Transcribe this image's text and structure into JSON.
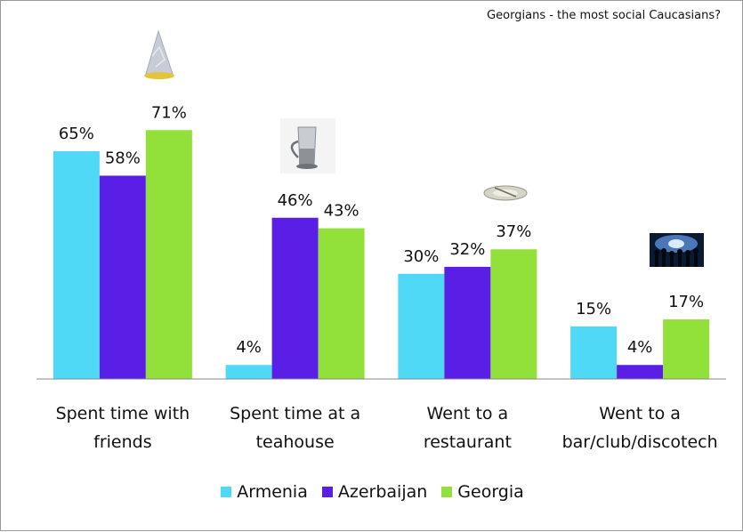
{
  "chart_data": {
    "type": "bar",
    "title": "Georgians - the most social Caucasians?",
    "categories": [
      [
        "Spent time with",
        "friends"
      ],
      [
        "Spent time at a",
        "teahouse"
      ],
      [
        "Went to a",
        "restaurant"
      ],
      [
        "Went to a",
        "bar/club/discotech"
      ]
    ],
    "series": [
      {
        "name": "Armenia",
        "values": [
          65,
          4,
          30,
          15
        ],
        "color": "#4FD9F7"
      },
      {
        "name": "Azerbaijan",
        "values": [
          58,
          46,
          32,
          4
        ],
        "color": "#5A1FE6"
      },
      {
        "name": "Georgia",
        "values": [
          71,
          43,
          37,
          17
        ],
        "color": "#92E03A"
      }
    ],
    "value_suffix": "%",
    "ylim": [
      0,
      100
    ],
    "legend_position": "bottom",
    "grid": false,
    "decorations": [
      "party-hat-icon",
      "tea-glass-icon",
      "dinner-plate-icon",
      "nightclub-crowd-icon"
    ]
  }
}
